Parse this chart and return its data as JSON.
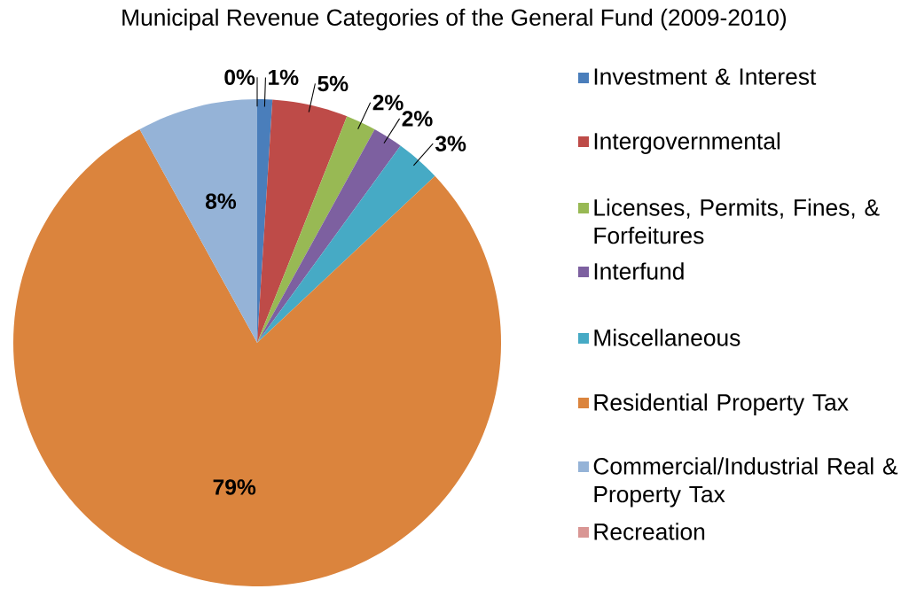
{
  "chart_data": {
    "type": "pie",
    "title": "Municipal Revenue Categories of the General Fund (2009-2010)",
    "categories": [
      "Investment & Interest",
      "Intergovernmental",
      "Licenses, Permits, Fines, & Forfeitures",
      "Interfund",
      "Miscellaneous",
      "Residential Property Tax",
      "Commercial/Industrial Real & Property Tax",
      "Recreation"
    ],
    "values": [
      1,
      5,
      2,
      2,
      3,
      79,
      8,
      0
    ],
    "value_labels": [
      "1%",
      "5%",
      "2%",
      "2%",
      "3%",
      "79%",
      "8%",
      "0%"
    ],
    "colors": [
      "#4a7ebb",
      "#be4b48",
      "#98b954",
      "#7d60a0",
      "#46aac5",
      "#db843d",
      "#95b3d7",
      "#d99694"
    ],
    "legend": "right"
  }
}
